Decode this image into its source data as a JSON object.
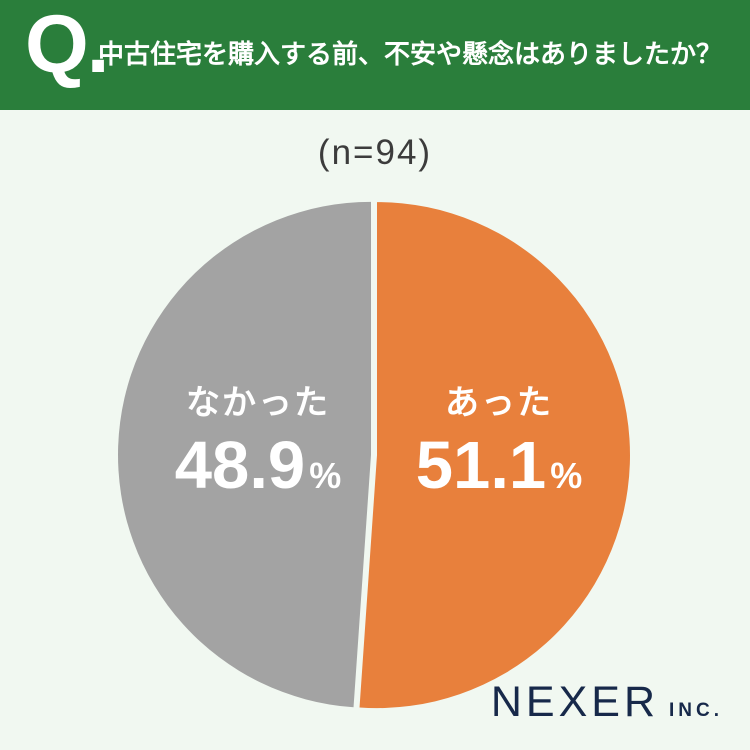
{
  "header": {
    "q_mark": "Q.",
    "question": "中古住宅を購入する前、不安や懸念はありましたか？",
    "bg_color": "#2a7e3b"
  },
  "sample_size": "(n=94)",
  "chart_data": {
    "type": "pie",
    "title": "中古住宅を購入する前、不安や懸念はありましたか？",
    "sample_size_label": "(n=94)",
    "n": 94,
    "start_angle_deg": -90,
    "direction": "clockwise",
    "separator_color": "#f1f8f1",
    "slices": [
      {
        "label": "あった",
        "value": 51.1,
        "display": "51.1",
        "unit": "%",
        "color": "#e8803c"
      },
      {
        "label": "なかった",
        "value": 48.9,
        "display": "48.9",
        "unit": "%",
        "color": "#a3a3a3"
      }
    ]
  },
  "logo": {
    "name": "NEXER",
    "suffix": "INC.",
    "color": "#17294a"
  }
}
